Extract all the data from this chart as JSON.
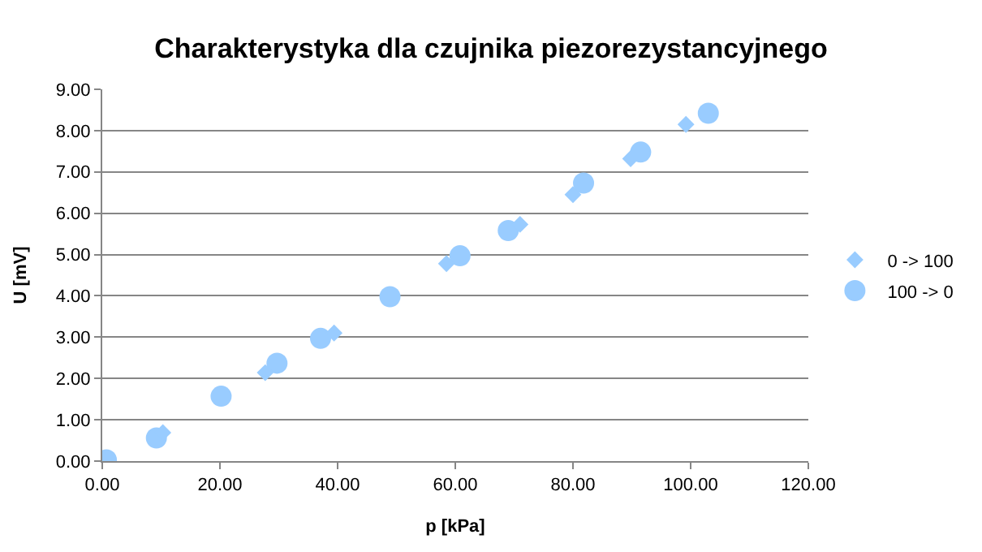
{
  "chart_data": {
    "type": "scatter",
    "title": "Charakterystyka dla czujnika piezorezystancyjnego",
    "xlabel": "p [kPa]",
    "ylabel": "U [mV]",
    "xlim": [
      0,
      120
    ],
    "xticks": [
      {
        "value": 0,
        "label": "0.00"
      },
      {
        "value": 20,
        "label": "20.00"
      },
      {
        "value": 40,
        "label": "40.00"
      },
      {
        "value": 60,
        "label": "60.00"
      },
      {
        "value": 80,
        "label": "80.00"
      },
      {
        "value": 100,
        "label": "100.00"
      },
      {
        "value": 120,
        "label": "120.00"
      }
    ],
    "ylim": [
      0,
      9
    ],
    "yticks": [
      {
        "value": 0,
        "label": "0.00"
      },
      {
        "value": 1,
        "label": "1.00"
      },
      {
        "value": 2,
        "label": "2.00"
      },
      {
        "value": 3,
        "label": "3.00"
      },
      {
        "value": 4,
        "label": "4.00"
      },
      {
        "value": 5,
        "label": "5.00"
      },
      {
        "value": 6,
        "label": "6.00"
      },
      {
        "value": 7,
        "label": "7.00"
      },
      {
        "value": 8,
        "label": "8.00"
      },
      {
        "value": 9,
        "label": "9.00"
      }
    ],
    "grid": "y",
    "legend": "right",
    "series": [
      {
        "name": "0 -> 100",
        "color": "#99ccff",
        "marker": "diamond",
        "x": [
          10.3,
          27.7,
          39.4,
          58.5,
          71.0,
          80.0,
          89.8,
          99.2
        ],
        "values": [
          0.69,
          2.14,
          3.1,
          4.78,
          5.73,
          6.45,
          7.32,
          8.15
        ]
      },
      {
        "name": "100 -> 0",
        "color": "#99ccff",
        "marker": "circle",
        "x": [
          0.7,
          9.2,
          20.2,
          29.7,
          37.1,
          48.9,
          60.8,
          69.0,
          81.8,
          91.5,
          103.0
        ],
        "values": [
          0.03,
          0.56,
          1.57,
          2.37,
          2.97,
          3.98,
          4.97,
          5.58,
          6.73,
          7.48,
          8.42
        ]
      }
    ]
  }
}
